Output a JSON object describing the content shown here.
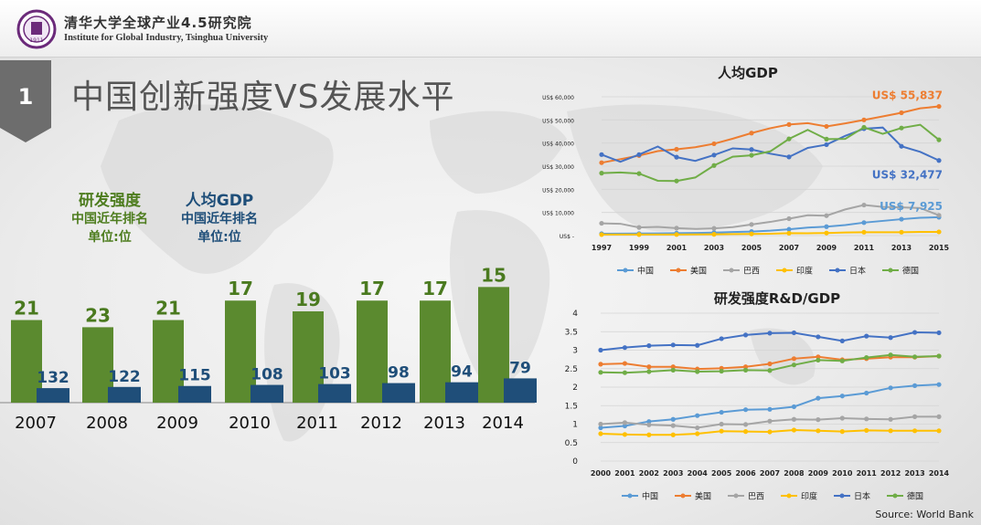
{
  "header": {
    "institute_cn": "清华大学全球产业4.5研究院",
    "institute_en": "Institute for Global Industry, Tsinghua University",
    "logo_text": "1911"
  },
  "slide": {
    "number": "1",
    "title": "中国创新强度VS发展水平",
    "source": "Source: World Bank"
  },
  "legend_rank": {
    "rd_title": "研发强度",
    "rd_sub1": "中国近年排名",
    "rd_sub2": "单位:位",
    "gdp_title": "人均GDP",
    "gdp_sub1": "中国近年排名",
    "gdp_sub2": "单位:位"
  },
  "colors": {
    "green_bar": "#5b8a2f",
    "blue_bar": "#1f4e79",
    "中国": "#5b9bd5",
    "美国": "#ed7d31",
    "巴西": "#a5a5a5",
    "印度": "#ffc000",
    "日本": "#4472c4",
    "德国": "#70ad47"
  },
  "chart_data": [
    {
      "type": "bar",
      "title": "",
      "categories": [
        "2007",
        "2008",
        "2009",
        "2010",
        "2011",
        "2012",
        "2013",
        "2014"
      ],
      "series": [
        {
          "name": "研发强度",
          "values": [
            21,
            23,
            21,
            17,
            19,
            17,
            17,
            15
          ]
        },
        {
          "name": "人均GDP",
          "values": [
            132,
            122,
            115,
            108,
            103,
            98,
            94,
            79
          ]
        }
      ]
    },
    {
      "type": "line",
      "title": "人均GDP",
      "x": [
        1997,
        1998,
        1999,
        2000,
        2001,
        2002,
        2003,
        2004,
        2005,
        2006,
        2007,
        2008,
        2009,
        2010,
        2011,
        2012,
        2013,
        2014,
        2015
      ],
      "xticks": [
        "1997",
        "1999",
        "2001",
        "2003",
        "2005",
        "2007",
        "2009",
        "2011",
        "2013",
        "2015"
      ],
      "yticks": [
        "US$ -",
        "US$ 10,000",
        "US$ 20,000",
        "US$ 30,000",
        "US$ 40,000",
        "US$ 50,000",
        "US$ 60,000"
      ],
      "ylim": [
        0,
        60000
      ],
      "series": [
        {
          "name": "中国",
          "values": [
            780,
            830,
            870,
            960,
            1050,
            1140,
            1290,
            1510,
            1750,
            2100,
            2700,
            3470,
            3840,
            4560,
            5600,
            6340,
            7080,
            7680,
            7925
          ]
        },
        {
          "name": "美国",
          "values": [
            31500,
            33000,
            34600,
            36500,
            37300,
            38200,
            39700,
            41900,
            44300,
            46400,
            48000,
            48600,
            47200,
            48500,
            50000,
            51500,
            53100,
            55000,
            55837
          ]
        },
        {
          "name": "巴西",
          "values": [
            5300,
            5100,
            3500,
            3750,
            3200,
            2850,
            3100,
            3650,
            4800,
            5900,
            7300,
            8800,
            8600,
            11300,
            13200,
            12400,
            12200,
            11900,
            8750
          ]
        },
        {
          "name": "印度",
          "values": [
            420,
            420,
            440,
            450,
            460,
            480,
            540,
            620,
            710,
            800,
            1020,
            1000,
            1100,
            1350,
            1450,
            1450,
            1450,
            1580,
            1600
          ]
        },
        {
          "name": "日本",
          "values": [
            35000,
            31900,
            35000,
            38500,
            33900,
            32300,
            34800,
            37700,
            37200,
            35400,
            34000,
            37900,
            39300,
            43100,
            46200,
            46700,
            38600,
            36200,
            32477
          ]
        },
        {
          "name": "德国",
          "values": [
            27000,
            27300,
            26800,
            23700,
            23600,
            25100,
            30300,
            34100,
            34700,
            36400,
            41800,
            45700,
            41700,
            41800,
            46800,
            44000,
            46500,
            47900,
            41400
          ]
        }
      ],
      "annotations": [
        "US$ 55,837",
        "US$ 32,477",
        "US$ 7,925"
      ]
    },
    {
      "type": "line",
      "title": "研发强度R&D/GDP",
      "x": [
        "2000",
        "2001",
        "2002",
        "2003",
        "2004",
        "2005",
        "2006",
        "2007",
        "2008",
        "2009",
        "2010",
        "2011",
        "2012",
        "2013",
        "2014"
      ],
      "yticks": [
        "0",
        "0.5",
        "1",
        "1.5",
        "2",
        "2.5",
        "3",
        "3.5",
        "4"
      ],
      "ylim": [
        0,
        4
      ],
      "series": [
        {
          "name": "中国",
          "values": [
            0.9,
            0.95,
            1.07,
            1.13,
            1.23,
            1.32,
            1.39,
            1.4,
            1.47,
            1.7,
            1.76,
            1.84,
            1.98,
            2.04,
            2.07
          ]
        },
        {
          "name": "美国",
          "values": [
            2.62,
            2.64,
            2.55,
            2.55,
            2.49,
            2.51,
            2.55,
            2.63,
            2.77,
            2.82,
            2.74,
            2.77,
            2.81,
            2.81,
            2.84
          ]
        },
        {
          "name": "巴西",
          "values": [
            1.0,
            1.04,
            0.98,
            0.96,
            0.9,
            1.0,
            0.99,
            1.08,
            1.13,
            1.12,
            1.16,
            1.14,
            1.13,
            1.2,
            1.2
          ]
        },
        {
          "name": "印度",
          "values": [
            0.74,
            0.72,
            0.71,
            0.71,
            0.74,
            0.81,
            0.8,
            0.79,
            0.84,
            0.82,
            0.8,
            0.83,
            0.82,
            0.82,
            0.82
          ]
        },
        {
          "name": "日本",
          "values": [
            3.0,
            3.07,
            3.12,
            3.14,
            3.13,
            3.31,
            3.41,
            3.46,
            3.47,
            3.36,
            3.25,
            3.38,
            3.34,
            3.48,
            3.47
          ]
        },
        {
          "name": "德国",
          "values": [
            2.4,
            2.39,
            2.42,
            2.46,
            2.42,
            2.43,
            2.46,
            2.45,
            2.6,
            2.73,
            2.71,
            2.8,
            2.87,
            2.82,
            2.84
          ]
        }
      ]
    }
  ]
}
